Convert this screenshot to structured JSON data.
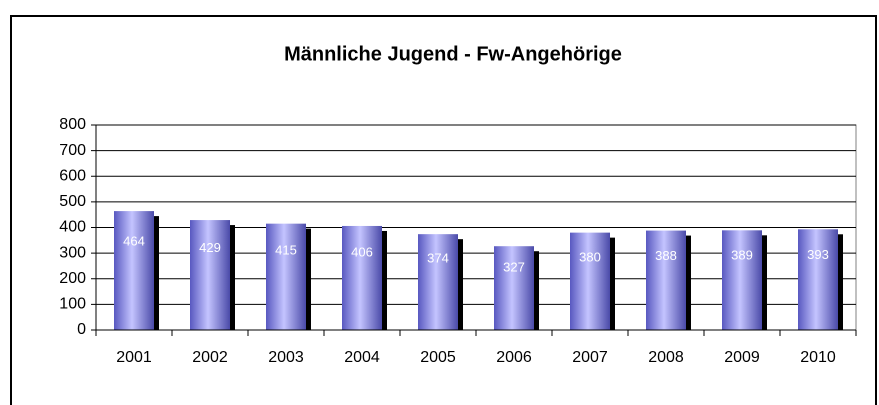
{
  "chart_data": {
    "type": "bar",
    "title": "Männliche Jugend -  Fw-Angehörige",
    "categories": [
      "2001",
      "2002",
      "2003",
      "2004",
      "2005",
      "2006",
      "2007",
      "2008",
      "2009",
      "2010"
    ],
    "values": [
      464,
      429,
      415,
      406,
      374,
      327,
      380,
      388,
      389,
      393
    ],
    "color": "#7b7be6",
    "ylim": [
      0,
      800
    ],
    "yticks": [
      0,
      100,
      200,
      300,
      400,
      500,
      600,
      700,
      800
    ],
    "grid": true
  }
}
